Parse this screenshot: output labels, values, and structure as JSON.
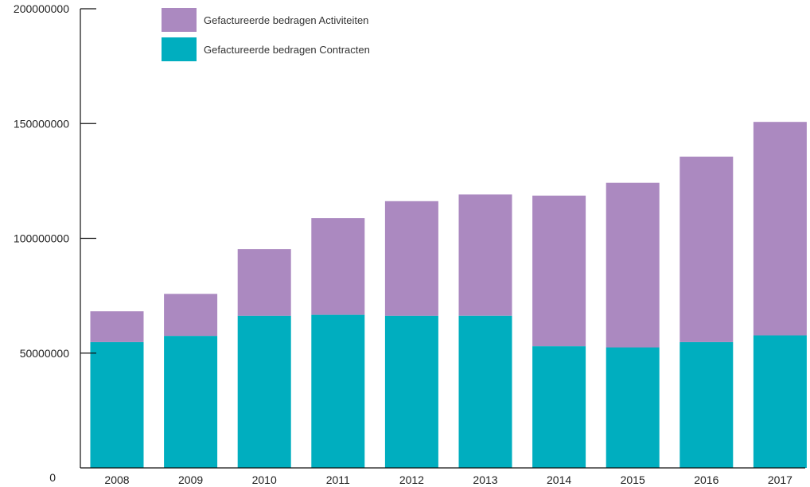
{
  "chart_data": {
    "type": "bar",
    "stacked": true,
    "categories": [
      "2008",
      "2009",
      "2010",
      "2011",
      "2012",
      "2013",
      "2014",
      "2015",
      "2016",
      "2017"
    ],
    "series": [
      {
        "name": "Gefactureerde bedragen Contracten",
        "color": "#00aebf",
        "values": [
          54800000,
          57500000,
          66300000,
          66700000,
          66300000,
          66300000,
          53000000,
          52500000,
          54800000,
          57700000
        ]
      },
      {
        "name": "Gefactureerde bedragen Activiteiten",
        "color": "#ab89c0",
        "values": [
          13400000,
          18300000,
          29000000,
          42100000,
          49900000,
          52800000,
          65600000,
          71700000,
          80800000,
          93000000
        ]
      }
    ],
    "y_ticks": [
      "0",
      "50000000",
      "100000000",
      "150000000",
      "200000000"
    ],
    "ylim": [
      0,
      200000000
    ],
    "grid": false,
    "legend_position": "top"
  }
}
